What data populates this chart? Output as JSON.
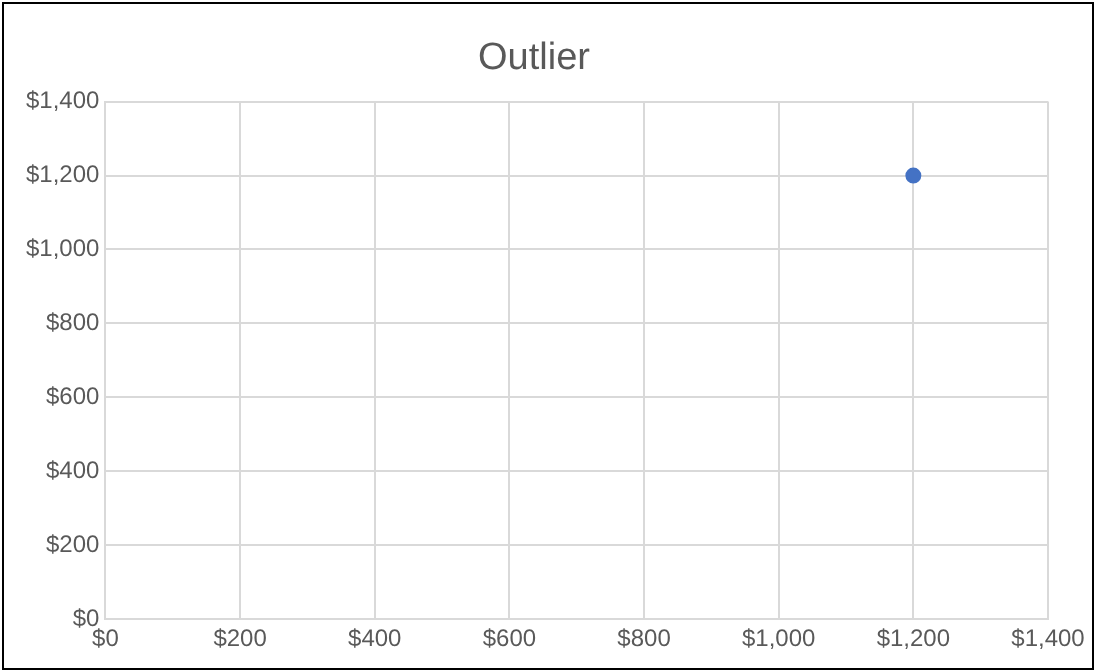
{
  "chart_data": {
    "type": "scatter",
    "title": "Outlier",
    "x": [
      1200
    ],
    "series": [
      {
        "color": "#4472c4",
        "values": [
          1200
        ]
      }
    ],
    "xlim": [
      0,
      1400
    ],
    "ylim": [
      0,
      1400
    ],
    "xticks": [
      {
        "value": 0,
        "label": "$0"
      },
      {
        "value": 200,
        "label": "$200"
      },
      {
        "value": 400,
        "label": "$400"
      },
      {
        "value": 600,
        "label": "$600"
      },
      {
        "value": 800,
        "label": "$800"
      },
      {
        "value": 1000,
        "label": "$1,000"
      },
      {
        "value": 1200,
        "label": "$1,200"
      },
      {
        "value": 1400,
        "label": "$1,400"
      }
    ],
    "yticks": [
      {
        "value": 0,
        "label": "$0"
      },
      {
        "value": 200,
        "label": "$200"
      },
      {
        "value": 400,
        "label": "$400"
      },
      {
        "value": 600,
        "label": "$600"
      },
      {
        "value": 800,
        "label": "$800"
      },
      {
        "value": 1000,
        "label": "$1,000"
      },
      {
        "value": 1200,
        "label": "$1,200"
      },
      {
        "value": 1400,
        "label": "$1,400"
      }
    ],
    "grid": true,
    "legend": false,
    "marker": "circle"
  }
}
